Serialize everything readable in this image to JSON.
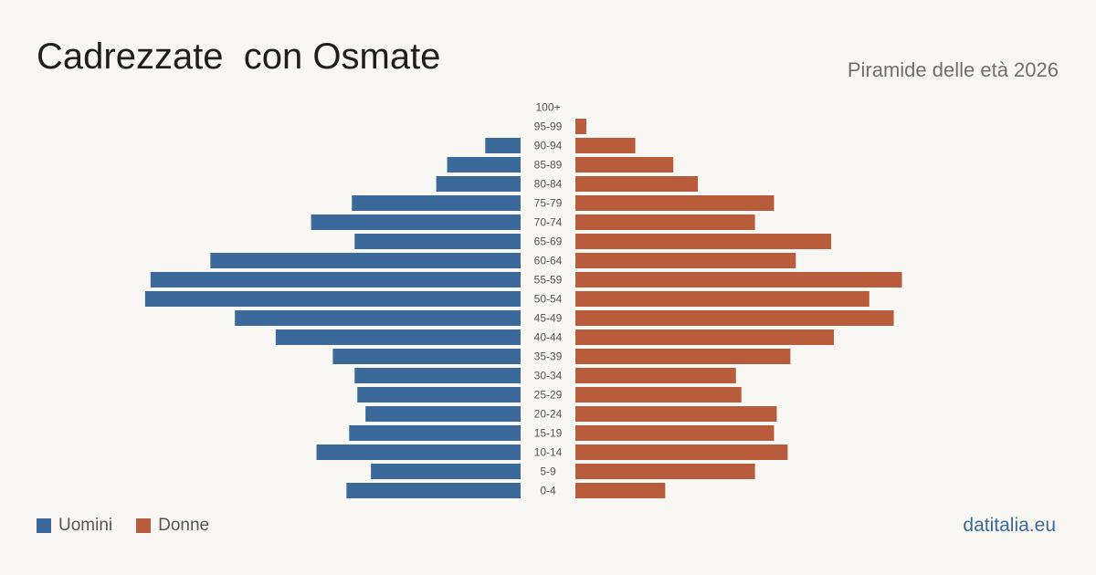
{
  "header": {
    "title": "Cadrezzate  con Osmate",
    "subtitle": "Piramide delle età 2026"
  },
  "legend": {
    "men_label": "Uomini",
    "women_label": "Donne"
  },
  "brand": "datitalia.eu",
  "colors": {
    "men": "#3b6a9a",
    "women": "#b85c3c",
    "label": "#555555",
    "background": "#f9f7f3"
  },
  "chart_data": {
    "type": "bar",
    "orientation": "horizontal",
    "layout": "population-pyramid",
    "categories": [
      "100+",
      "95-99",
      "90-94",
      "85-89",
      "80-84",
      "75-79",
      "70-74",
      "65-69",
      "60-64",
      "55-59",
      "50-54",
      "45-49",
      "40-44",
      "35-39",
      "30-34",
      "25-29",
      "20-24",
      "15-19",
      "10-14",
      "5-9",
      "0-4"
    ],
    "series": [
      {
        "name": "Uomini",
        "values": [
          0,
          0,
          13,
          27,
          31,
          62,
          77,
          61,
          114,
          136,
          138,
          105,
          90,
          69,
          61,
          60,
          57,
          63,
          75,
          55,
          64
        ]
      },
      {
        "name": "Donne",
        "values": [
          0,
          4,
          22,
          36,
          45,
          73,
          66,
          94,
          81,
          120,
          108,
          117,
          95,
          79,
          59,
          61,
          74,
          73,
          78,
          66,
          33
        ]
      }
    ],
    "xlim": [
      0,
      145
    ]
  }
}
